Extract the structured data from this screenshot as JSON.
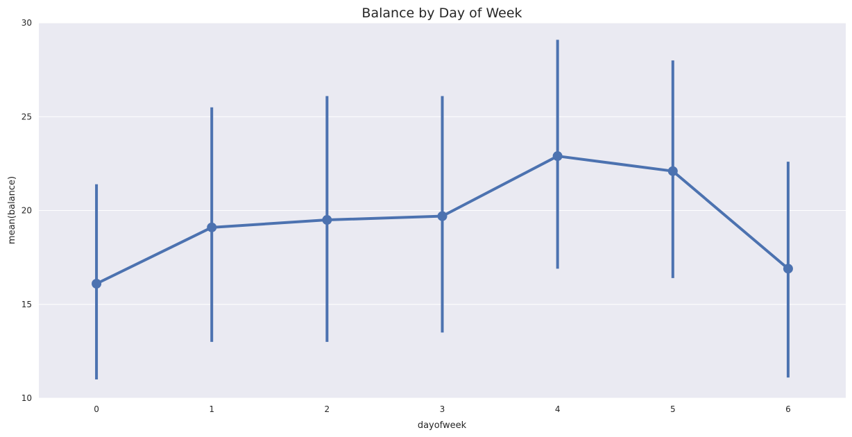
{
  "chart_data": {
    "type": "line",
    "title": "Balance by Day of Week",
    "xlabel": "dayofweek",
    "ylabel": "mean(balance)",
    "categories": [
      "0",
      "1",
      "2",
      "3",
      "4",
      "5",
      "6"
    ],
    "ylim": [
      10,
      30
    ],
    "yticks": [
      "10",
      "15",
      "20",
      "25",
      "30"
    ],
    "grid": true,
    "style": "point-plot-with-error-bars",
    "colors": {
      "series": "#4c72b0",
      "background": "#eaeaf2",
      "grid": "#ffffff"
    },
    "series": [
      {
        "values": [
          16.1,
          19.1,
          19.5,
          19.7,
          22.9,
          22.1,
          16.9
        ],
        "ci_low": [
          11.0,
          13.0,
          13.0,
          13.5,
          16.9,
          16.4,
          11.1
        ],
        "ci_high": [
          21.4,
          25.5,
          26.1,
          26.1,
          29.1,
          28.0,
          22.6
        ]
      }
    ]
  }
}
